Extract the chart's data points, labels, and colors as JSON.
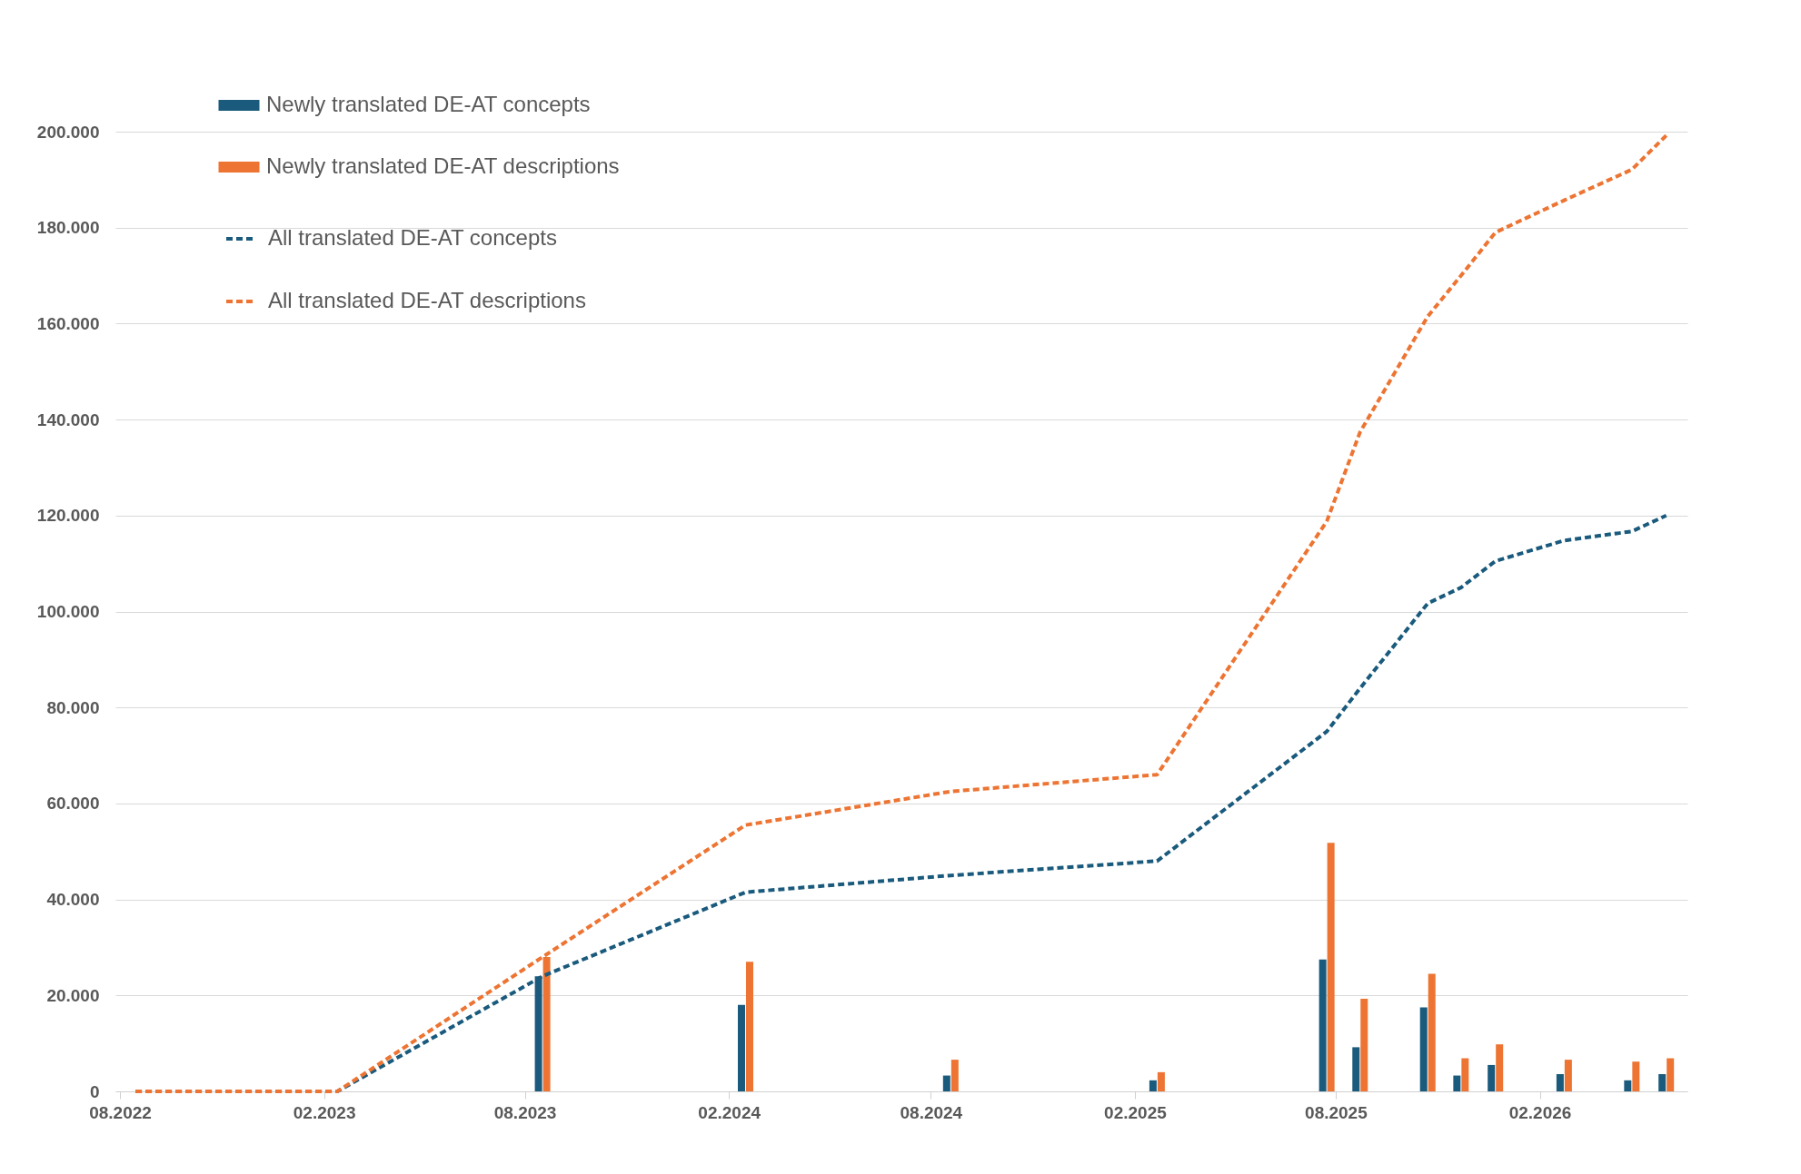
{
  "chart_data": {
    "type": "bar",
    "x": [
      "2022-08-15",
      "2023-02-13",
      "2023-08-17",
      "2024-02-16",
      "2024-08-19",
      "2025-02-21",
      "2025-07-24",
      "2025-08-23",
      "2025-10-23",
      "2025-11-22",
      "2025-12-23",
      "2026-02-23",
      "2026-04-25",
      "2026-05-26"
    ],
    "series": [
      {
        "name": "Newly translated DE-AT concepts",
        "color": "#1a5a7c",
        "values": [
          null,
          null,
          24000,
          18000,
          3300,
          2300,
          27500,
          9200,
          17500,
          3300,
          5500,
          3600,
          2300,
          3600
        ]
      },
      {
        "name": "Newly translated DE-AT descriptions",
        "color": "#ed7432",
        "values": [
          null,
          null,
          28000,
          27000,
          6600,
          4000,
          51800,
          19300,
          24500,
          6900,
          9800,
          6600,
          6200,
          6900
        ]
      },
      {
        "name": "All translated DE-AT concepts",
        "color": "#1a5a7c",
        "type": "line",
        "values": [
          0,
          0,
          24000,
          41500,
          45000,
          48000,
          75000,
          84000,
          101700,
          105000,
          110500,
          114800,
          116700,
          120000
        ]
      },
      {
        "name": "All translated DE-AT descriptions",
        "color": "#ed7432",
        "type": "line",
        "values": [
          0,
          0,
          28000,
          55500,
          62500,
          66000,
          118800,
          137400,
          161500,
          170000,
          179000,
          185700,
          192100,
          199200
        ]
      }
    ],
    "line_style": "dashed",
    "grid": "y",
    "legend": "top left",
    "xlim": [
      "2022-08-01",
      "2026-06-10"
    ],
    "xticks": [
      {
        "value": "2022-08-01",
        "label": "08.2022"
      },
      {
        "value": "2023-02-01",
        "label": "02.2023"
      },
      {
        "value": "2023-08-01",
        "label": "08.2023"
      },
      {
        "value": "2024-02-01",
        "label": "02.2024"
      },
      {
        "value": "2024-08-01",
        "label": "08.2024"
      },
      {
        "value": "2025-02-01",
        "label": "02.2025"
      },
      {
        "value": "2025-08-01",
        "label": "08.2025"
      },
      {
        "value": "2026-02-01",
        "label": "02.2026"
      }
    ],
    "ylim": [
      0,
      200000
    ],
    "yticks": [
      0,
      {
        "value": 20000,
        "label": "20.000"
      },
      {
        "value": 40000,
        "label": "40.000"
      },
      {
        "value": 60000,
        "label": "60.000"
      },
      {
        "value": 80000,
        "label": "80.000"
      },
      {
        "value": 100000,
        "label": "100.000"
      },
      {
        "value": 120000,
        "label": "120.000"
      },
      {
        "value": 140000,
        "label": "140.000"
      },
      {
        "value": 160000,
        "label": "160.000"
      },
      {
        "value": 180000,
        "label": "180.000"
      },
      {
        "value": 200000,
        "label": "200.000"
      }
    ]
  }
}
